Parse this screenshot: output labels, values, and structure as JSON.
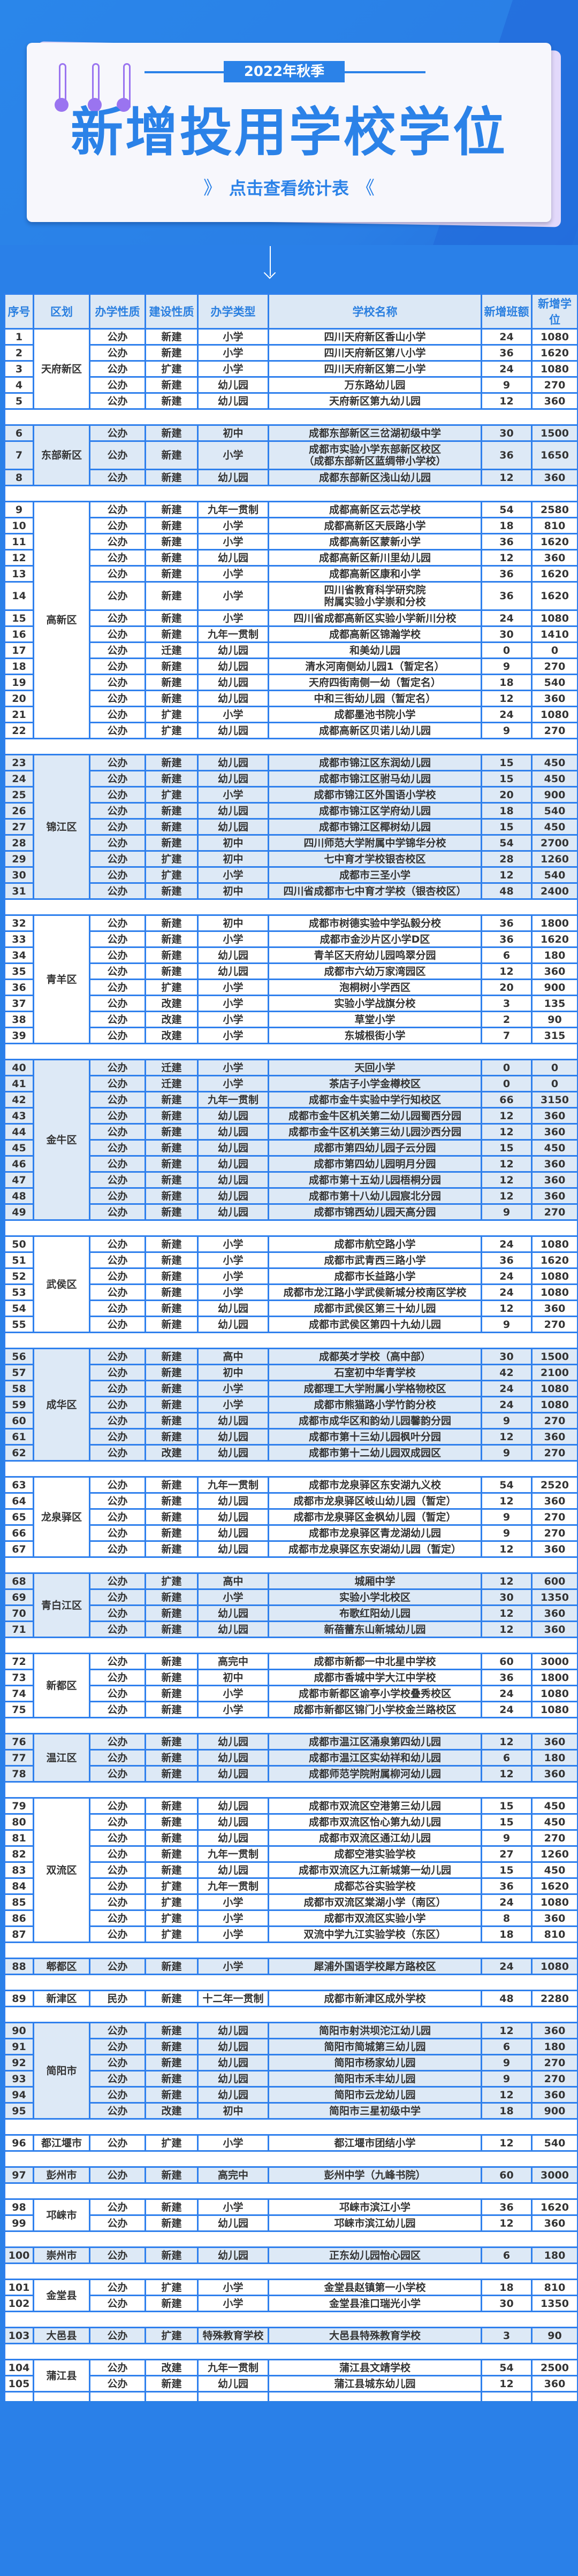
{
  "banner": {
    "season": "2022年秋季",
    "title": "新增投用学校学位",
    "cta": "点击查看统计表",
    "cta_left": "》",
    "cta_right": "《"
  },
  "colors": {
    "brand_blue": "#2b82e8",
    "ring_purple": "#9a74f0",
    "alt_row": "#dde9f6"
  },
  "table": {
    "headers": [
      "序号",
      "区划",
      "办学性质",
      "建设性质",
      "办学类型",
      "学校名称",
      "新增班额",
      "新增学位"
    ],
    "groups": [
      {
        "district": "天府新区",
        "rows": [
          [
            "1",
            "公办",
            "新建",
            "小学",
            "四川天府新区香山小学",
            "24",
            "1080"
          ],
          [
            "2",
            "公办",
            "新建",
            "小学",
            "四川天府新区第八小学",
            "36",
            "1620"
          ],
          [
            "3",
            "公办",
            "扩建",
            "小学",
            "四川天府新区第二小学",
            "24",
            "1080"
          ],
          [
            "4",
            "公办",
            "新建",
            "幼儿园",
            "万东路幼儿园",
            "9",
            "270"
          ],
          [
            "5",
            "公办",
            "新建",
            "幼儿园",
            "天府新区第九幼儿园",
            "12",
            "360"
          ]
        ]
      },
      {
        "district": "东部新区",
        "rows": [
          [
            "6",
            "公办",
            "新建",
            "初中",
            "成都东部新区三岔湖初级中学",
            "30",
            "1500"
          ],
          [
            "7",
            "公办",
            "新建",
            "小学",
            "成都市实验小学东部新区校区\n（成都东部新区蓝绸带小学校）",
            "36",
            "1650"
          ],
          [
            "8",
            "公办",
            "新建",
            "幼儿园",
            "成都东部新区浅山幼儿园",
            "12",
            "360"
          ]
        ]
      },
      {
        "district": "高新区",
        "rows": [
          [
            "9",
            "公办",
            "新建",
            "九年一贯制",
            "成都高新区云芯学校",
            "54",
            "2580"
          ],
          [
            "10",
            "公办",
            "新建",
            "小学",
            "成都高新区天辰路小学",
            "18",
            "810"
          ],
          [
            "11",
            "公办",
            "新建",
            "小学",
            "成都高新区蒙新小学",
            "36",
            "1620"
          ],
          [
            "12",
            "公办",
            "新建",
            "幼儿园",
            "成都高新区新川里幼儿园",
            "12",
            "360"
          ],
          [
            "13",
            "公办",
            "新建",
            "小学",
            "成都高新区康和小学",
            "36",
            "1620"
          ],
          [
            "14",
            "公办",
            "新建",
            "小学",
            "四川省教育科学研究院\n附属实验小学崇和分校",
            "36",
            "1620"
          ],
          [
            "15",
            "公办",
            "新建",
            "小学",
            "四川省成都高新区实验小学新川分校",
            "24",
            "1080"
          ],
          [
            "16",
            "公办",
            "新建",
            "九年一贯制",
            "成都高新区锦瀚学校",
            "30",
            "1410"
          ],
          [
            "17",
            "公办",
            "迁建",
            "幼儿园",
            "和美幼儿园",
            "0",
            "0"
          ],
          [
            "18",
            "公办",
            "新建",
            "幼儿园",
            "清水河南侧幼儿园1（暂定名）",
            "9",
            "270"
          ],
          [
            "19",
            "公办",
            "新建",
            "幼儿园",
            "天府四街南侧一幼（暂定名）",
            "18",
            "540"
          ],
          [
            "20",
            "公办",
            "新建",
            "幼儿园",
            "中和三街幼儿园（暂定名）",
            "12",
            "360"
          ],
          [
            "21",
            "公办",
            "扩建",
            "小学",
            "成都墨池书院小学",
            "24",
            "1080"
          ],
          [
            "22",
            "公办",
            "扩建",
            "幼儿园",
            "成都高新区贝诺儿幼儿园",
            "9",
            "270"
          ]
        ]
      },
      {
        "district": "锦江区",
        "rows": [
          [
            "23",
            "公办",
            "新建",
            "幼儿园",
            "成都市锦江区东润幼儿园",
            "15",
            "450"
          ],
          [
            "24",
            "公办",
            "新建",
            "幼儿园",
            "成都市锦江区驸马幼儿园",
            "15",
            "450"
          ],
          [
            "25",
            "公办",
            "扩建",
            "小学",
            "成都市锦江区外国语小学校",
            "20",
            "900"
          ],
          [
            "26",
            "公办",
            "新建",
            "幼儿园",
            "成都市锦江区学府幼儿园",
            "18",
            "540"
          ],
          [
            "27",
            "公办",
            "新建",
            "幼儿园",
            "成都市锦江区椰树幼儿园",
            "15",
            "450"
          ],
          [
            "28",
            "公办",
            "新建",
            "初中",
            "四川师范大学附属中学锦华分校",
            "54",
            "2700"
          ],
          [
            "29",
            "公办",
            "扩建",
            "初中",
            "七中育才学校银杏校区",
            "28",
            "1260"
          ],
          [
            "30",
            "公办",
            "扩建",
            "小学",
            "成都市三圣小学",
            "12",
            "540"
          ],
          [
            "31",
            "公办",
            "新建",
            "初中",
            "四川省成都市七中育才学校（银杏校区）",
            "48",
            "2400"
          ]
        ]
      },
      {
        "district": "青羊区",
        "rows": [
          [
            "32",
            "公办",
            "新建",
            "初中",
            "成都市树德实验中学弘毅分校",
            "36",
            "1800"
          ],
          [
            "33",
            "公办",
            "新建",
            "小学",
            "成都市金沙片区小学D区",
            "36",
            "1620"
          ],
          [
            "34",
            "公办",
            "新建",
            "幼儿园",
            "青羊区天府幼儿园鸣翠分园",
            "6",
            "180"
          ],
          [
            "35",
            "公办",
            "新建",
            "幼儿园",
            "成都市六幼万家湾园区",
            "12",
            "360"
          ],
          [
            "36",
            "公办",
            "扩建",
            "小学",
            "泡桐树小学西区",
            "20",
            "900"
          ],
          [
            "37",
            "公办",
            "改建",
            "小学",
            "实验小学战旗分校",
            "3",
            "135"
          ],
          [
            "38",
            "公办",
            "改建",
            "小学",
            "草堂小学",
            "2",
            "90"
          ],
          [
            "39",
            "公办",
            "改建",
            "小学",
            "东城根街小学",
            "7",
            "315"
          ]
        ]
      },
      {
        "district": "金牛区",
        "rows": [
          [
            "40",
            "公办",
            "迁建",
            "小学",
            "天回小学",
            "0",
            "0"
          ],
          [
            "41",
            "公办",
            "迁建",
            "小学",
            "茶店子小学金樽校区",
            "0",
            "0"
          ],
          [
            "42",
            "公办",
            "新建",
            "九年一贯制",
            "成都市金牛实验中学行知校区",
            "66",
            "3150"
          ],
          [
            "43",
            "公办",
            "新建",
            "幼儿园",
            "成都市金牛区机关第二幼儿园蜀西分园",
            "12",
            "360"
          ],
          [
            "44",
            "公办",
            "新建",
            "幼儿园",
            "成都市金牛区机关第三幼儿园沙西分园",
            "12",
            "360"
          ],
          [
            "45",
            "公办",
            "新建",
            "幼儿园",
            "成都市第四幼儿园子云分园",
            "15",
            "450"
          ],
          [
            "46",
            "公办",
            "新建",
            "幼儿园",
            "成都市第四幼儿园明月分园",
            "12",
            "360"
          ],
          [
            "47",
            "公办",
            "新建",
            "幼儿园",
            "成都市第十五幼儿园梧桐分园",
            "12",
            "360"
          ],
          [
            "48",
            "公办",
            "新建",
            "幼儿园",
            "成都市第十八幼儿园宸北分园",
            "12",
            "360"
          ],
          [
            "49",
            "公办",
            "新建",
            "幼儿园",
            "成都市锦西幼儿园天高分园",
            "9",
            "270"
          ]
        ]
      },
      {
        "district": "武侯区",
        "rows": [
          [
            "50",
            "公办",
            "新建",
            "小学",
            "成都市航空路小学",
            "24",
            "1080"
          ],
          [
            "51",
            "公办",
            "新建",
            "小学",
            "成都市武青西三路小学",
            "36",
            "1620"
          ],
          [
            "52",
            "公办",
            "新建",
            "小学",
            "成都市长益路小学",
            "24",
            "1080"
          ],
          [
            "53",
            "公办",
            "新建",
            "小学",
            "成都市龙江路小学武侯新城分校南区学校",
            "24",
            "1080"
          ],
          [
            "54",
            "公办",
            "新建",
            "幼儿园",
            "成都市武侯区第三十幼儿园",
            "12",
            "360"
          ],
          [
            "55",
            "公办",
            "新建",
            "幼儿园",
            "成都市武侯区第四十九幼儿园",
            "9",
            "270"
          ]
        ]
      },
      {
        "district": "成华区",
        "rows": [
          [
            "56",
            "公办",
            "新建",
            "高中",
            "成都英才学校（高中部）",
            "30",
            "1500"
          ],
          [
            "57",
            "公办",
            "新建",
            "初中",
            "石室初中华青学校",
            "42",
            "2100"
          ],
          [
            "58",
            "公办",
            "新建",
            "小学",
            "成都理工大学附属小学格物校区",
            "24",
            "1080"
          ],
          [
            "59",
            "公办",
            "新建",
            "小学",
            "成都市熊猫路小学竹韵分校",
            "24",
            "1080"
          ],
          [
            "60",
            "公办",
            "新建",
            "幼儿园",
            "成都市成华区和韵幼儿园馨韵分园",
            "9",
            "270"
          ],
          [
            "61",
            "公办",
            "新建",
            "幼儿园",
            "成都市第十三幼儿园枫叶分园",
            "12",
            "360"
          ],
          [
            "62",
            "公办",
            "改建",
            "幼儿园",
            "成都市第十二幼儿园双成园区",
            "9",
            "270"
          ]
        ]
      },
      {
        "district": "龙泉驿区",
        "rows": [
          [
            "63",
            "公办",
            "新建",
            "九年一贯制",
            "成都市龙泉驿区东安湖九义校",
            "54",
            "2520"
          ],
          [
            "64",
            "公办",
            "新建",
            "幼儿园",
            "成都市龙泉驿区岐山幼儿园（暂定）",
            "12",
            "360"
          ],
          [
            "65",
            "公办",
            "新建",
            "幼儿园",
            "成都市龙泉驿区金枫幼儿园（暂定）",
            "9",
            "270"
          ],
          [
            "66",
            "公办",
            "新建",
            "幼儿园",
            "成都市龙泉驿区青龙湖幼儿园",
            "9",
            "270"
          ],
          [
            "67",
            "公办",
            "新建",
            "幼儿园",
            "成都市龙泉驿区东安湖幼儿园（暂定）",
            "12",
            "360"
          ]
        ]
      },
      {
        "district": "青白江区",
        "rows": [
          [
            "68",
            "公办",
            "扩建",
            "高中",
            "城厢中学",
            "12",
            "600"
          ],
          [
            "69",
            "公办",
            "新建",
            "小学",
            "实验小学北校区",
            "30",
            "1350"
          ],
          [
            "70",
            "公办",
            "新建",
            "幼儿园",
            "布歌红阳幼儿园",
            "12",
            "360"
          ],
          [
            "71",
            "公办",
            "新建",
            "幼儿园",
            "新蓓蕾东山新城幼儿园",
            "12",
            "360"
          ]
        ]
      },
      {
        "district": "新都区",
        "rows": [
          [
            "72",
            "公办",
            "新建",
            "高完中",
            "成都市新都一中北星中学校",
            "60",
            "3000"
          ],
          [
            "73",
            "公办",
            "新建",
            "初中",
            "成都市香城中学大江中学校",
            "36",
            "1800"
          ],
          [
            "74",
            "公办",
            "新建",
            "小学",
            "成都市新都区谕亭小学校叠秀校区",
            "24",
            "1080"
          ],
          [
            "75",
            "公办",
            "新建",
            "小学",
            "成都市新都区锦门小学校金兰路校区",
            "24",
            "1080"
          ]
        ]
      },
      {
        "district": "温江区",
        "rows": [
          [
            "76",
            "公办",
            "新建",
            "幼儿园",
            "成都市温江区涌泉第四幼儿园",
            "12",
            "360"
          ],
          [
            "77",
            "公办",
            "新建",
            "幼儿园",
            "成都市温江区实幼祥和幼儿园",
            "6",
            "180"
          ],
          [
            "78",
            "公办",
            "新建",
            "幼儿园",
            "成都师范学院附属柳河幼儿园",
            "12",
            "360"
          ]
        ]
      },
      {
        "district": "双流区",
        "rows": [
          [
            "79",
            "公办",
            "新建",
            "幼儿园",
            "成都市双流区空港第三幼儿园",
            "15",
            "450"
          ],
          [
            "80",
            "公办",
            "新建",
            "幼儿园",
            "成都市双流区怡心第九幼儿园",
            "15",
            "450"
          ],
          [
            "81",
            "公办",
            "新建",
            "幼儿园",
            "成都市双流区通江幼儿园",
            "9",
            "270"
          ],
          [
            "82",
            "公办",
            "新建",
            "九年一贯制",
            "成都空港实验学校",
            "27",
            "1260"
          ],
          [
            "83",
            "公办",
            "新建",
            "幼儿园",
            "成都市双流区九江新城第一幼儿园",
            "15",
            "450"
          ],
          [
            "84",
            "公办",
            "扩建",
            "九年一贯制",
            "成都芯谷实验学校",
            "36",
            "1620"
          ],
          [
            "85",
            "公办",
            "扩建",
            "小学",
            "成都市双流区棠湖小学（南区）",
            "24",
            "1080"
          ],
          [
            "86",
            "公办",
            "扩建",
            "小学",
            "成都市双流区实验小学",
            "8",
            "360"
          ],
          [
            "87",
            "公办",
            "扩建",
            "小学",
            "双流中学九江实验学校（东区）",
            "18",
            "810"
          ]
        ]
      },
      {
        "district": "郫都区",
        "rows": [
          [
            "88",
            "公办",
            "新建",
            "小学",
            "犀浦外国语学校犀方路校区",
            "24",
            "1080"
          ]
        ]
      },
      {
        "district": "新津区",
        "rows": [
          [
            "89",
            "民办",
            "新建",
            "十二年一贯制",
            "成都市新津区成外学校",
            "48",
            "2280"
          ]
        ]
      },
      {
        "district": "简阳市",
        "rows": [
          [
            "90",
            "公办",
            "新建",
            "幼儿园",
            "简阳市射洪坝沱江幼儿园",
            "12",
            "360"
          ],
          [
            "91",
            "公办",
            "新建",
            "幼儿园",
            "简阳市简城第三幼儿园",
            "6",
            "180"
          ],
          [
            "92",
            "公办",
            "新建",
            "幼儿园",
            "简阳市杨家幼儿园",
            "9",
            "270"
          ],
          [
            "93",
            "公办",
            "新建",
            "幼儿园",
            "简阳市禾丰幼儿园",
            "9",
            "270"
          ],
          [
            "94",
            "公办",
            "新建",
            "幼儿园",
            "简阳市云龙幼儿园",
            "12",
            "360"
          ],
          [
            "95",
            "公办",
            "改建",
            "初中",
            "简阳市三星初级中学",
            "18",
            "900"
          ]
        ]
      },
      {
        "district": "都江堰市",
        "rows": [
          [
            "96",
            "公办",
            "扩建",
            "小学",
            "都江堰市团结小学",
            "12",
            "540"
          ]
        ]
      },
      {
        "district": "彭州市",
        "rows": [
          [
            "97",
            "公办",
            "新建",
            "高完中",
            "彭州中学（九峰书院）",
            "60",
            "3000"
          ]
        ]
      },
      {
        "district": "邛崃市",
        "rows": [
          [
            "98",
            "公办",
            "新建",
            "小学",
            "邛崃市滨江小学",
            "36",
            "1620"
          ],
          [
            "99",
            "公办",
            "新建",
            "幼儿园",
            "邛崃市滨江幼儿园",
            "12",
            "360"
          ]
        ]
      },
      {
        "district": "崇州市",
        "rows": [
          [
            "100",
            "公办",
            "新建",
            "幼儿园",
            "正东幼儿园怡心园区",
            "6",
            "180"
          ]
        ]
      },
      {
        "district": "金堂县",
        "rows": [
          [
            "101",
            "公办",
            "扩建",
            "小学",
            "金堂县赵镇第一小学校",
            "18",
            "810"
          ],
          [
            "102",
            "公办",
            "新建",
            "小学",
            "金堂县淮口瑞光小学",
            "30",
            "1350"
          ]
        ]
      },
      {
        "district": "大邑县",
        "rows": [
          [
            "103",
            "公办",
            "扩建",
            "特殊教育学校",
            "大邑县特殊教育学校",
            "3",
            "90"
          ]
        ]
      },
      {
        "district": "蒲江县",
        "rows": [
          [
            "104",
            "公办",
            "改建",
            "九年一贯制",
            "蒲江县文靖学校",
            "54",
            "2500"
          ],
          [
            "105",
            "公办",
            "新建",
            "幼儿园",
            "蒲江县城东幼儿园",
            "12",
            "360"
          ]
        ]
      }
    ]
  }
}
